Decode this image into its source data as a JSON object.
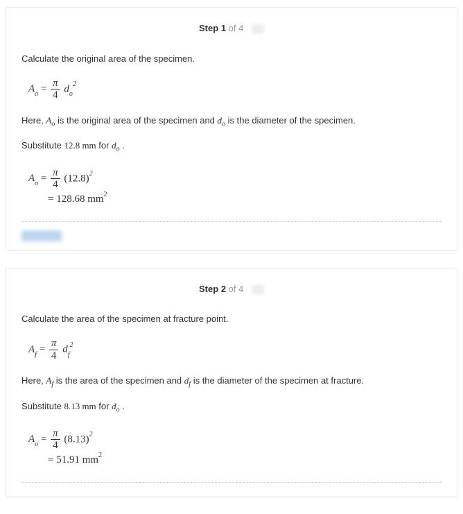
{
  "steps": [
    {
      "header": {
        "word": "Step",
        "num": "1",
        "of": "of 4"
      },
      "lines": {
        "intro": "Calculate the original area of the specimen.",
        "formula1_lhs": "A",
        "formula1_lhs_sub": "o",
        "formula1_pi": "π",
        "formula1_den": "4",
        "formula1_rhs": "d",
        "formula1_rhs_sub": "o",
        "formula1_rhs_sup": "2",
        "here_pre": "Here,  ",
        "here_A": "A",
        "here_A_sub": "o",
        "here_mid": " is the original area of the specimen and   ",
        "here_d": "d",
        "here_d_sub": "o",
        "here_post": " is the diameter of the specimen.",
        "sub_pre": "Substitute ",
        "sub_val": "12.8 mm",
        "sub_mid": " for ",
        "sub_var": "d",
        "sub_var_sub": "o",
        "sub_post": " .",
        "calc_lhs": "A",
        "calc_lhs_sub": "o",
        "calc_pi": "π",
        "calc_den": "4",
        "calc_paren": "(12.8)",
        "calc_sup": "2",
        "result_eq": "= 128.68 mm",
        "result_sup": "2"
      }
    },
    {
      "header": {
        "word": "Step",
        "num": "2",
        "of": "of 4"
      },
      "lines": {
        "intro": "Calculate the area of the specimen at fracture point.",
        "formula1_lhs": "A",
        "formula1_lhs_sub": "f",
        "formula1_pi": "π",
        "formula1_den": "4",
        "formula1_rhs": "d",
        "formula1_rhs_sub": "f",
        "formula1_rhs_sup": "2",
        "here_pre": "Here,  ",
        "here_A": "A",
        "here_A_sub": "f",
        "here_mid": " is the area of the specimen and   ",
        "here_d": "d",
        "here_d_sub": "f",
        "here_post": " is the diameter of the specimen at fracture.",
        "sub_pre": "Substitute ",
        "sub_val": "8.13 mm",
        "sub_mid": " for ",
        "sub_var": "d",
        "sub_var_sub": "o",
        "sub_post": " .",
        "calc_lhs": "A",
        "calc_lhs_sub": "o",
        "calc_pi": "π",
        "calc_den": "4",
        "calc_paren": "(8.13)",
        "calc_sup": "2",
        "result_eq": "= 51.91 mm",
        "result_sup": "2"
      }
    }
  ],
  "colors": {
    "text": "#333333",
    "muted": "#999999",
    "border": "#e5e5e5",
    "dash": "#d0d0d0",
    "blur_link": "#bcd6ef",
    "background": "#ffffff"
  }
}
